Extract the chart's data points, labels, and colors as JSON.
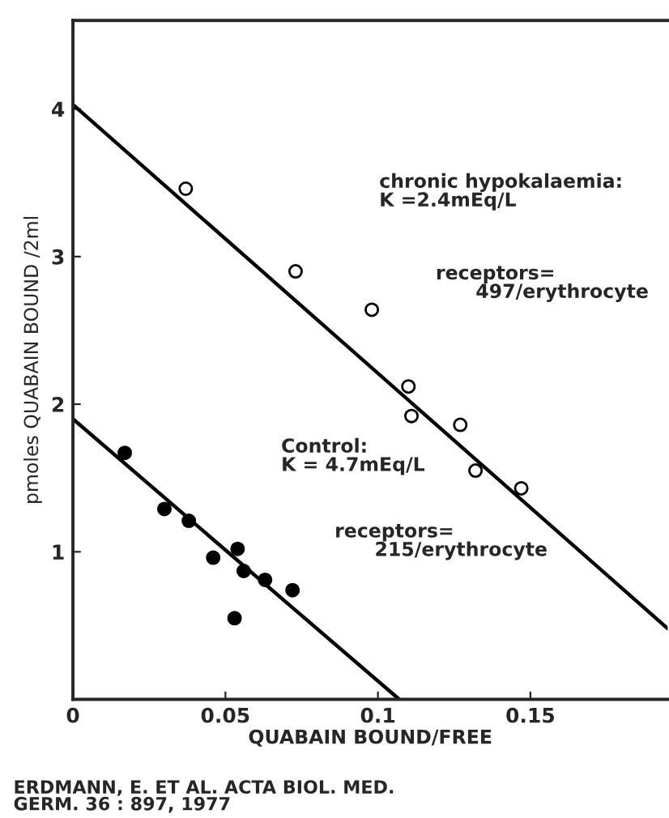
{
  "chart_data": {
    "type": "scatter",
    "xlabel": "QUABAIN BOUND/FREE",
    "ylabel": "pmoles QUABAIN BOUND /2ml",
    "xlim": [
      0,
      0.195
    ],
    "ylim": [
      0,
      4.6
    ],
    "xticks": [
      0,
      0.05,
      0.1,
      0.15
    ],
    "yticks": [
      1,
      2,
      3,
      4
    ],
    "grid": false,
    "legend": false,
    "series": [
      {
        "color": "#ffffff",
        "marker": "circle",
        "x": [
          0.037,
          0.073,
          0.098,
          0.11,
          0.111,
          0.127,
          0.132,
          0.147
        ],
        "values": [
          3.46,
          2.9,
          2.64,
          2.12,
          1.92,
          1.86,
          1.55,
          1.43
        ]
      },
      {
        "color": "#000000",
        "marker": "circle",
        "x": [
          0.017,
          0.03,
          0.038,
          0.046,
          0.054,
          0.056,
          0.063,
          0.072,
          0.053
        ],
        "values": [
          1.67,
          1.29,
          1.21,
          0.96,
          1.02,
          0.87,
          0.81,
          0.74,
          0.55
        ]
      },
      {
        "type": "line",
        "color": "#000000",
        "x": [
          0,
          0.195
        ],
        "values": [
          4.03,
          0.48
        ]
      },
      {
        "type": "line",
        "color": "#000000",
        "x": [
          0,
          0.107
        ],
        "values": [
          1.9,
          0
        ]
      }
    ],
    "annotations": [
      "chronic hypokalaemia:\nK =2.4mEq/L",
      "receptors=\n      497/erythrocyte",
      "Control:\nK = 4.7mEq/L",
      "receptors=\n      215/erythrocyte",
      "ERDMANN, E. ET AL. ACTA BIOL. MED.\nGERM. 36 : 897, 1977"
    ]
  }
}
